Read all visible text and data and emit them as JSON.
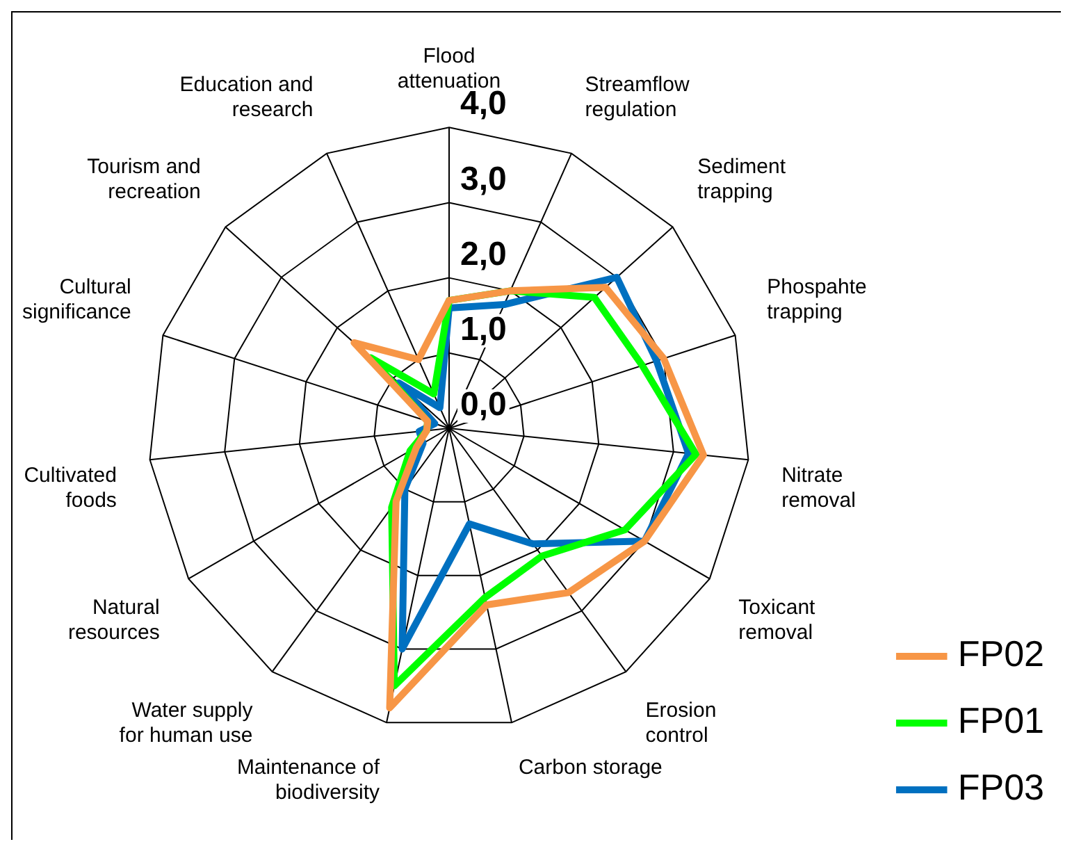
{
  "chart_data": {
    "type": "radar",
    "categories": [
      "Flood attenuation",
      "Streamflow regulation",
      "Sediment trapping",
      "Phospahte trapping",
      "Nitrate removal",
      "Toxicant removal",
      "Erosion control",
      "Carbon storage",
      "Maintenance of biodiversity",
      "Water supply for human use",
      "Natural resources",
      "Cultivated foods",
      "Cultural significance",
      "Tourism and recreation",
      "Education and research"
    ],
    "series": [
      {
        "name": "FP02",
        "color": "#f79646",
        "values": [
          1.7,
          2.0,
          2.8,
          3.0,
          3.4,
          3.0,
          2.7,
          2.4,
          3.8,
          1.2,
          0.5,
          0.3,
          0.3,
          1.7,
          1.0
        ]
      },
      {
        "name": "FP01",
        "color": "#00ff00",
        "values": [
          1.7,
          2.0,
          2.6,
          2.7,
          3.3,
          2.7,
          2.1,
          2.3,
          3.5,
          1.3,
          0.6,
          0.3,
          0.3,
          1.4,
          0.5
        ]
      },
      {
        "name": "FP03",
        "color": "#0070c0",
        "values": [
          1.6,
          1.8,
          3.0,
          2.9,
          3.2,
          3.0,
          1.9,
          1.3,
          3.0,
          1.0,
          0.4,
          0.4,
          0.2,
          0.9,
          0.3
        ]
      }
    ],
    "ylim": [
      0,
      4
    ],
    "yticks": [
      {
        "value": 0,
        "label": "0,0"
      },
      {
        "value": 1,
        "label": "1,0"
      },
      {
        "value": 2,
        "label": "2,0"
      },
      {
        "value": 3,
        "label": "3,0"
      },
      {
        "value": 4,
        "label": "4,0"
      }
    ],
    "grid": true,
    "legend": "bottom right",
    "marker": "none",
    "line_style": "solid"
  }
}
